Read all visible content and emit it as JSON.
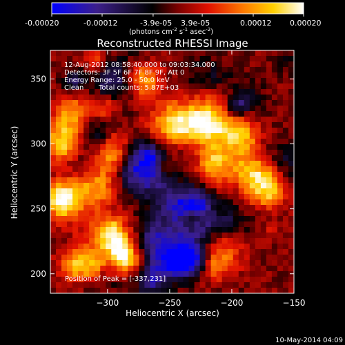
{
  "colorbar": {
    "ticks": [
      "-0.00020",
      "-0.00012",
      "-3.9e-05",
      "3.9e-05",
      "0.00012",
      "0.00020"
    ],
    "tick_values": [
      -0.0002,
      -0.00012,
      -3.9e-05,
      3.9e-05,
      0.00012,
      0.0002
    ],
    "range": [
      -0.0002,
      0.0002
    ],
    "units_prefix": "(photons cm",
    "units_exp1": "-2",
    "units_mid": " s",
    "units_exp2": "-1",
    "units_mid2": " asec",
    "units_exp3": "-2",
    "units_suffix": ")",
    "colors": [
      "#0000ff",
      "#3c1f8a",
      "#000000",
      "#7a0000",
      "#e01000",
      "#ff7a00",
      "#ffd000",
      "#ffffff"
    ]
  },
  "chart_data": {
    "type": "heatmap",
    "title": "Reconstructed RHESSI Image",
    "xlabel": "Heliocentric X (arcsec)",
    "ylabel": "Heliocentric Y (arcsec)",
    "xlim": [
      -346,
      -150
    ],
    "ylim": [
      185,
      372
    ],
    "xticks": [
      -300,
      -250,
      -200,
      -150
    ],
    "yticks": [
      200,
      250,
      300,
      350
    ],
    "grid": false,
    "annotations": {
      "time_range": "12-Aug-2012 08:58:40.000 to 09:03:34.000",
      "detectors": "Detectors: 3F 5F 6F 7F 8F 9F, Att 0",
      "energy": "Energy Range: 25.0 - 50.0 keV",
      "method": "Clean",
      "counts": "Total counts: 5.87E+03",
      "peak": "Position of Peak = [-337,231]"
    },
    "peak_position": [
      -337,
      231
    ],
    "value_range": [
      -0.0002,
      0.0002
    ]
  },
  "footer": {
    "timestamp": "10-May-2014 04:09"
  }
}
